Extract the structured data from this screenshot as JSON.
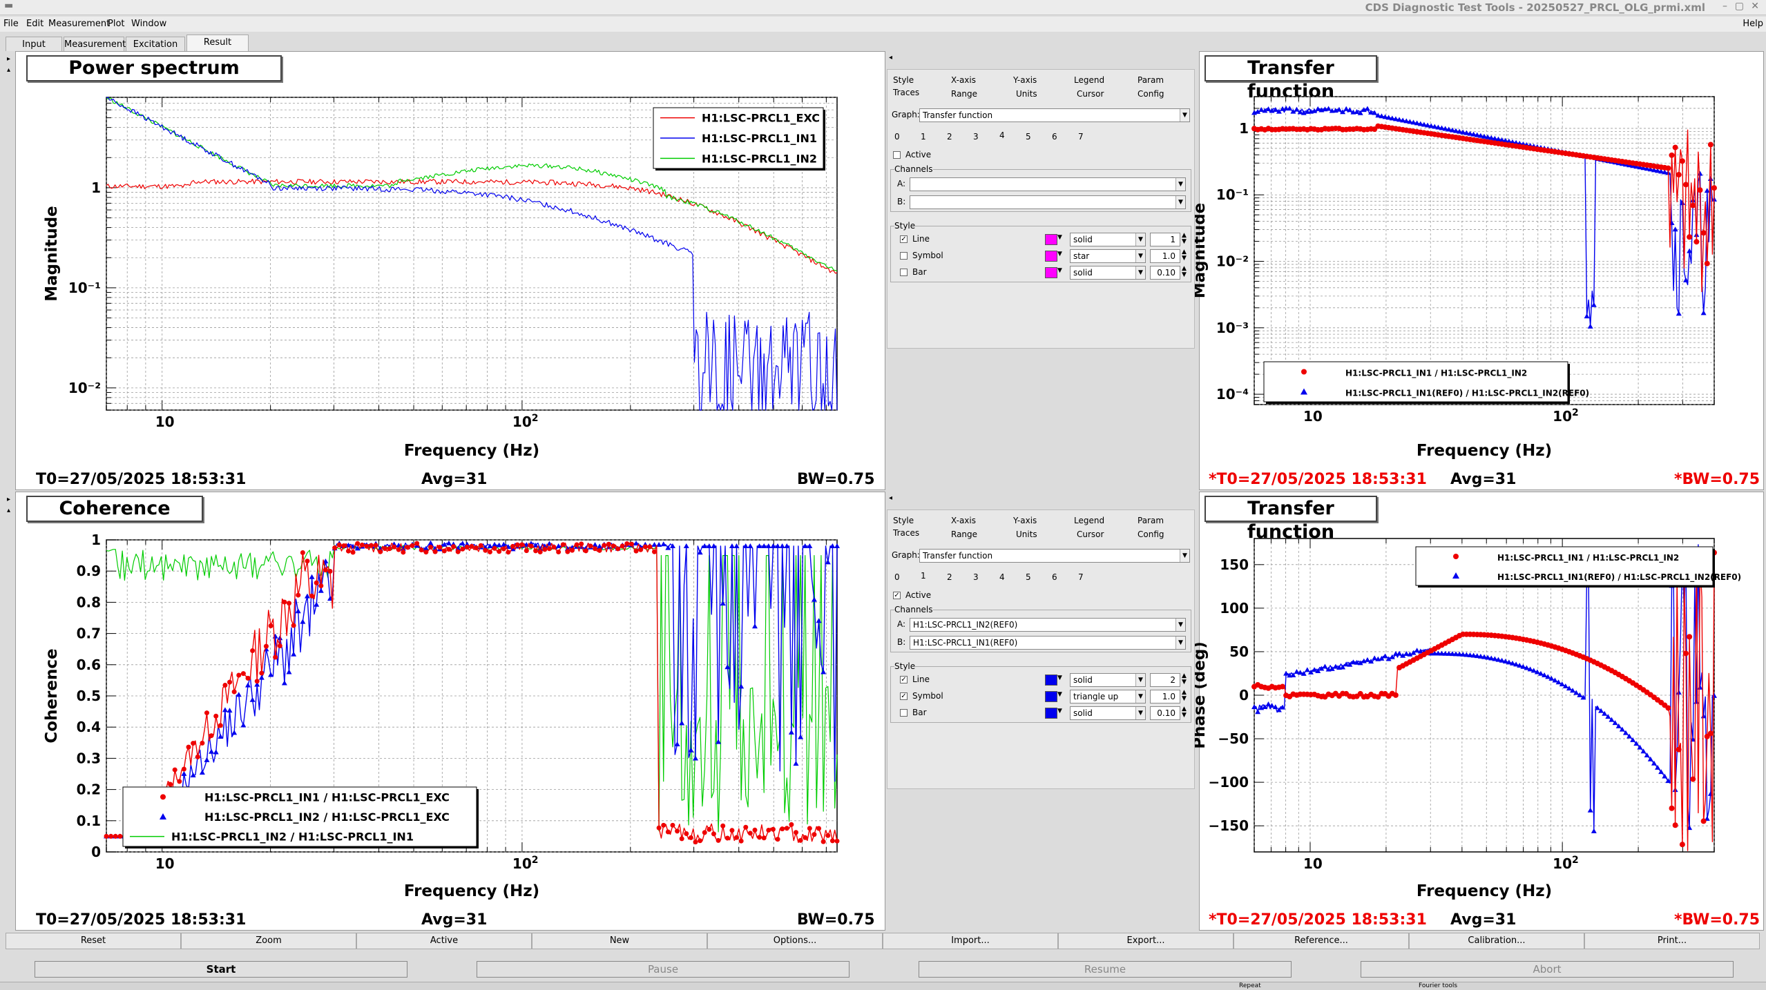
{
  "window": {
    "title": "CDS Diagnostic Test Tools - 20250527_PRCL_OLG_prmi.xml",
    "help": "Help"
  },
  "menu": [
    "File",
    "Edit",
    "Measurement",
    "Plot",
    "Window"
  ],
  "tabs": [
    "Input",
    "Measurement",
    "Excitation",
    "Result"
  ],
  "plots": {
    "ps": {
      "title": "Power spectrum",
      "xlabel": "Frequency (Hz)",
      "ylabel": "Magnitude",
      "yticks": [
        "1",
        "10⁻¹",
        "10⁻²"
      ],
      "xticks": [
        "10",
        "10²"
      ],
      "legend": [
        "H1:LSC-PRCL1_EXC",
        "H1:LSC-PRCL1_IN1",
        "H1:LSC-PRCL1_IN2"
      ],
      "t0": "T0=27/05/2025 18:53:31",
      "avg": "Avg=31",
      "bw": "BW=0.75"
    },
    "coh": {
      "title": "Coherence",
      "xlabel": "Frequency (Hz)",
      "ylabel": "Coherence",
      "yticks": [
        "1",
        "0.9",
        "0.8",
        "0.7",
        "0.6",
        "0.5",
        "0.4",
        "0.3",
        "0.2",
        "0.1",
        "0"
      ],
      "xticks": [
        "10",
        "10²"
      ],
      "legend": [
        "H1:LSC-PRCL1_IN1 / H1:LSC-PRCL1_EXC",
        "H1:LSC-PRCL1_IN2 / H1:LSC-PRCL1_EXC",
        "H1:LSC-PRCL1_IN2 / H1:LSC-PRCL1_IN1"
      ],
      "t0": "T0=27/05/2025 18:53:31",
      "avg": "Avg=31",
      "bw": "BW=0.75"
    },
    "tfm": {
      "title": "Transfer function",
      "xlabel": "Frequency (Hz)",
      "ylabel": "Magnitude",
      "yticks": [
        "1",
        "10⁻¹",
        "10⁻²",
        "10⁻³",
        "10⁻⁴"
      ],
      "xticks": [
        "10",
        "10²"
      ],
      "legend": [
        "H1:LSC-PRCL1_IN1 / H1:LSC-PRCL1_IN2",
        "H1:LSC-PRCL1_IN1(REF0) / H1:LSC-PRCL1_IN2(REF0)"
      ],
      "t0": "*T0=27/05/2025 18:53:31",
      "avg": "Avg=31",
      "bw": "*BW=0.75"
    },
    "tfp": {
      "title": "Transfer function",
      "xlabel": "Frequency (Hz)",
      "ylabel": "Phase (deg)",
      "yticks": [
        "150",
        "100",
        "50",
        "0",
        "−50",
        "−100",
        "−150"
      ],
      "xticks": [
        "10",
        "10²"
      ],
      "legend": [
        "H1:LSC-PRCL1_IN1 / H1:LSC-PRCL1_IN2",
        "H1:LSC-PRCL1_IN1(REF0) / H1:LSC-PRCL1_IN2(REF0)"
      ],
      "t0": "*T0=27/05/2025 18:53:31",
      "avg": "Avg=31",
      "bw": "*BW=0.75"
    }
  },
  "optpanel_top": {
    "tabs_row1": [
      "Style",
      "X-axis",
      "Y-axis",
      "Legend",
      "Param"
    ],
    "tabs_row2": [
      "Traces",
      "Range",
      "Units",
      "Cursor",
      "Config"
    ],
    "graph_label": "Graph:",
    "graph": "Transfer function",
    "trace_nums": [
      "0",
      "1",
      "2",
      "3",
      "4",
      "5",
      "6",
      "7"
    ],
    "active": "Active",
    "channels": "Channels",
    "a_label": "A:",
    "b_label": "B:",
    "a": "",
    "b": "",
    "style": "Style",
    "rows": [
      {
        "name": "Line",
        "val": "solid",
        "num": "1"
      },
      {
        "name": "Symbol",
        "val": "star",
        "num": "1.0"
      },
      {
        "name": "Bar",
        "val": "solid",
        "num": "0.10"
      }
    ]
  },
  "optpanel_bot": {
    "tabs_row1": [
      "Style",
      "X-axis",
      "Y-axis",
      "Legend",
      "Param"
    ],
    "tabs_row2": [
      "Traces",
      "Range",
      "Units",
      "Cursor",
      "Config"
    ],
    "graph_label": "Graph:",
    "graph": "Transfer function",
    "trace_nums": [
      "0",
      "1",
      "2",
      "3",
      "4",
      "5",
      "6",
      "7"
    ],
    "active": "Active",
    "channels": "Channels",
    "a_label": "A:",
    "b_label": "B:",
    "a": "H1:LSC-PRCL1_IN2(REF0)",
    "b": "H1:LSC-PRCL1_IN1(REF0)",
    "style": "Style",
    "rows": [
      {
        "name": "Line",
        "val": "solid",
        "num": "2"
      },
      {
        "name": "Symbol",
        "val": "triangle up",
        "num": "1.0"
      },
      {
        "name": "Bar",
        "val": "solid",
        "num": "0.10"
      }
    ]
  },
  "buttons_row1": [
    "Reset",
    "Zoom",
    "Active",
    "New",
    "Options...",
    "Import...",
    "Export...",
    "Reference...",
    "Calibration...",
    "Print..."
  ],
  "buttons_row2": [
    "Start",
    "Pause",
    "Resume",
    "Abort"
  ],
  "status": {
    "repeat": "Repeat",
    "fourier": "Fourier tools"
  },
  "colors": {
    "red": "#ee0000",
    "blue": "#0000ee",
    "green": "#00cc00",
    "magenta": "#ff00ff"
  }
}
